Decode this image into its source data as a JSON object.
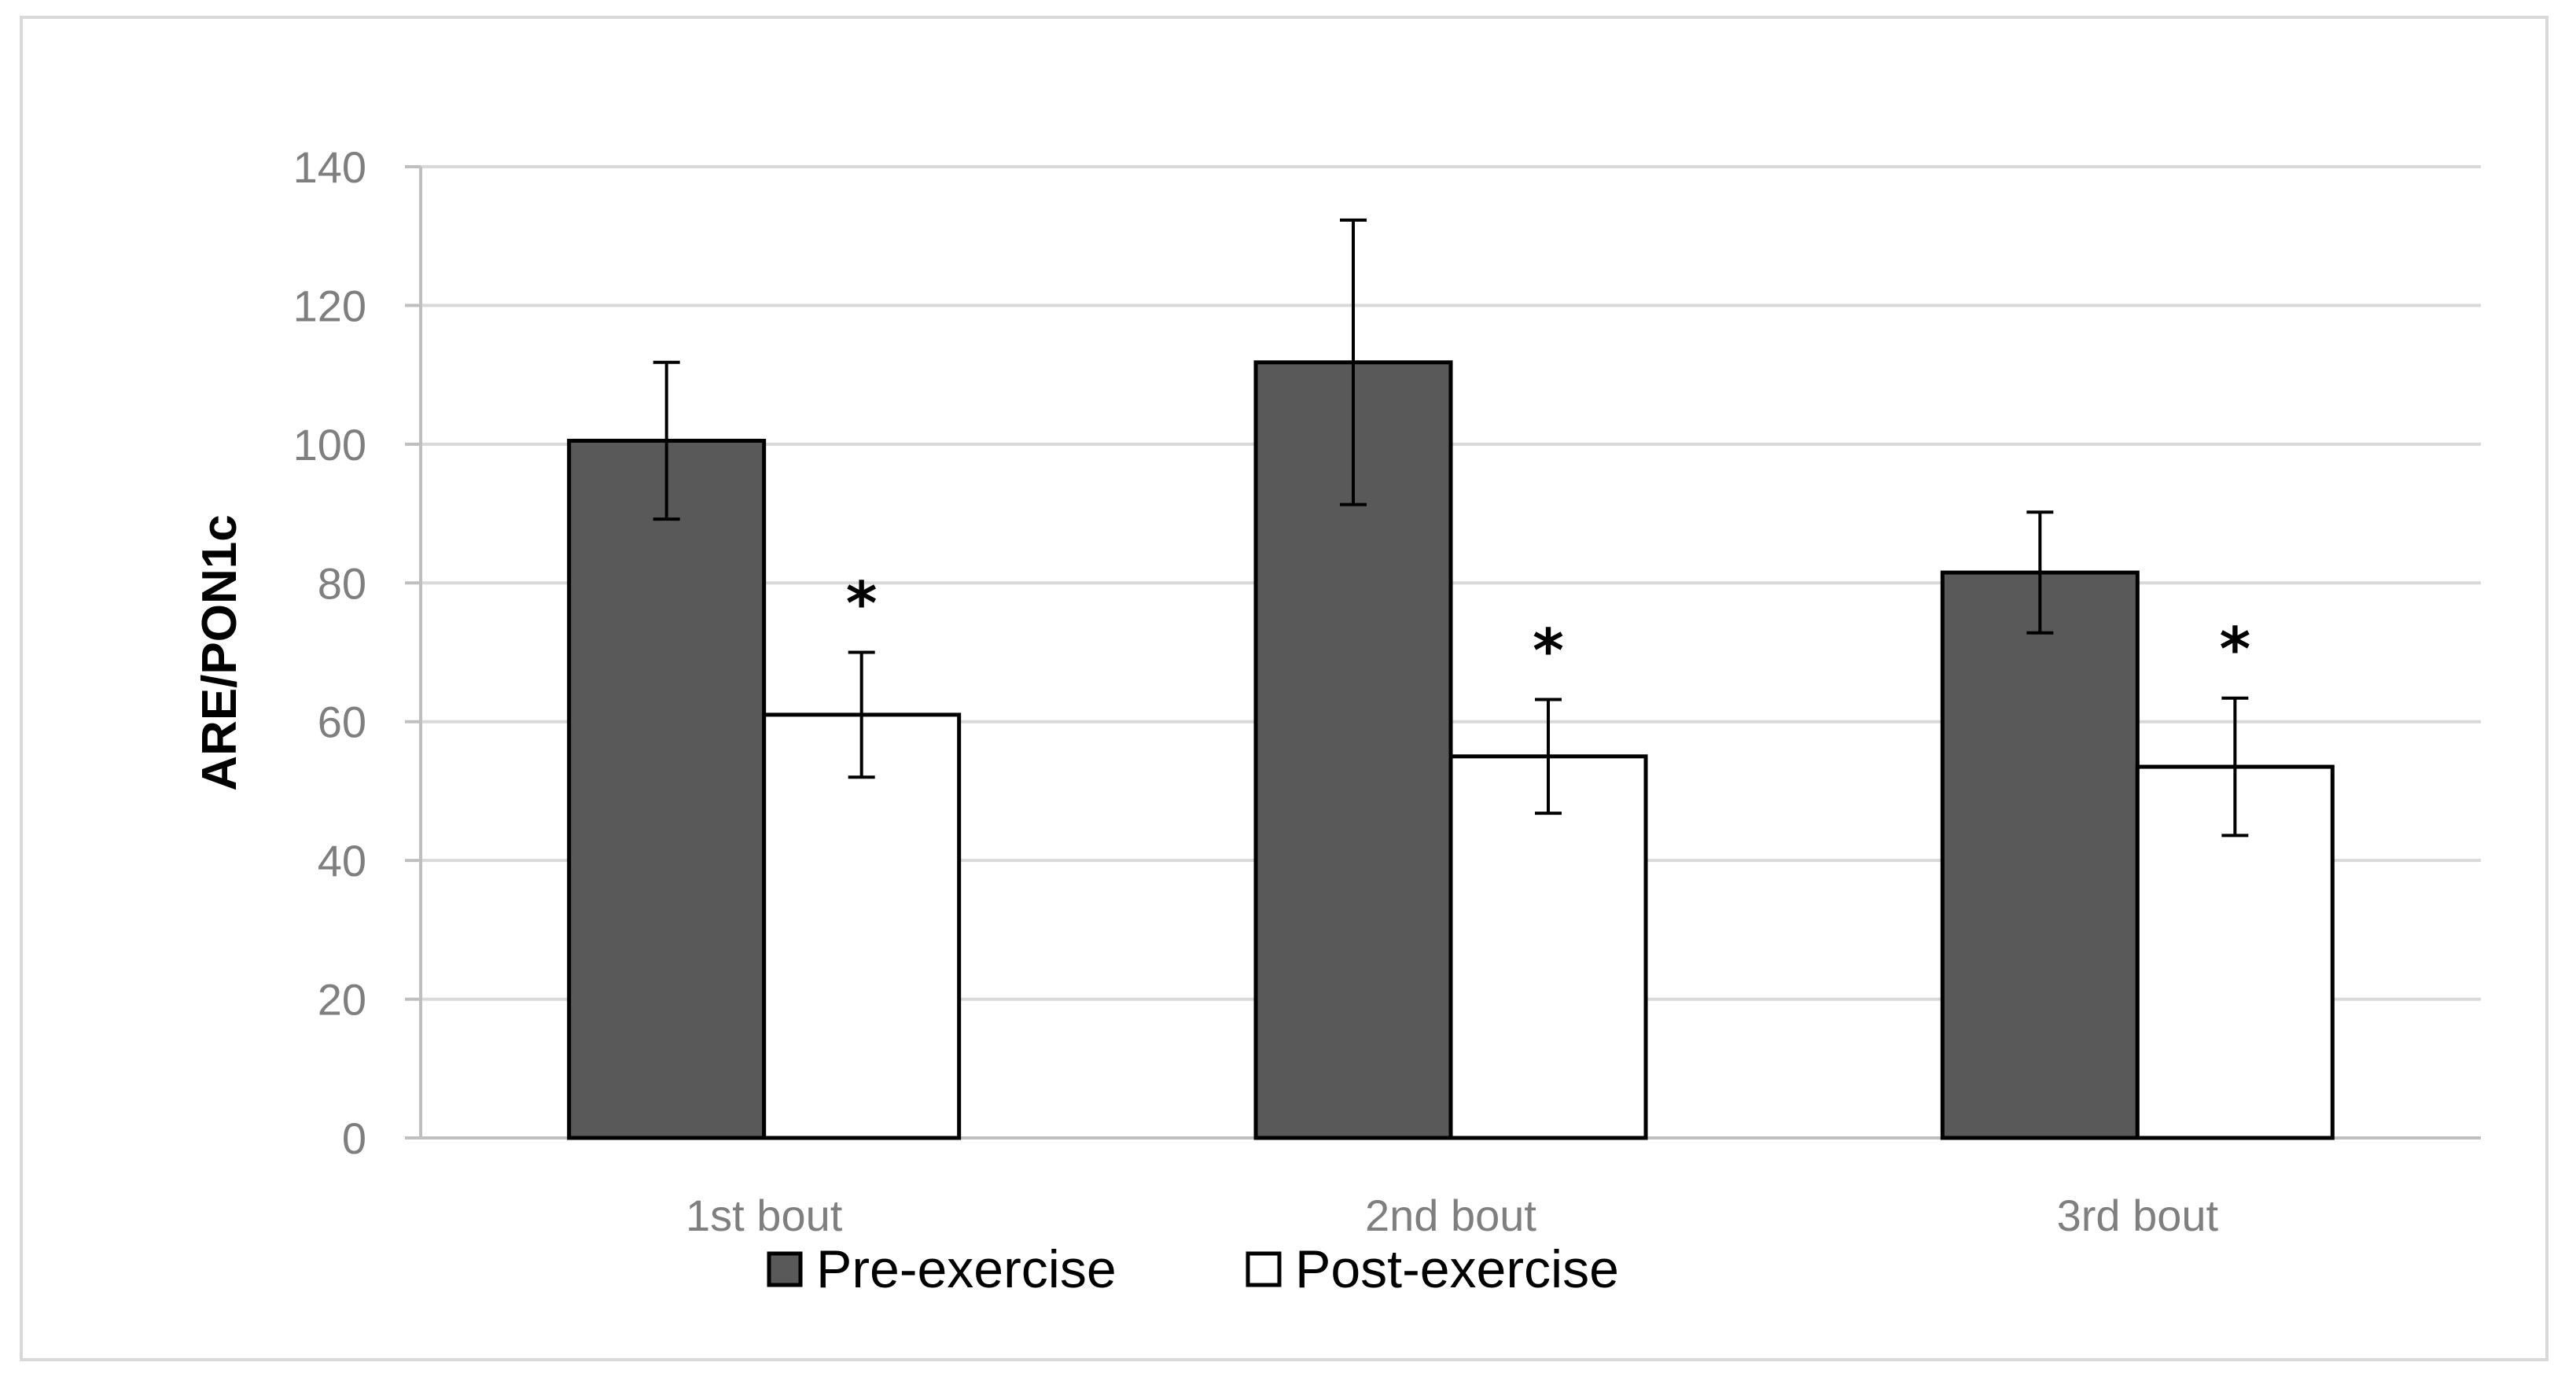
{
  "chart_data": {
    "type": "bar",
    "title": "",
    "xlabel": "",
    "ylabel": "ARE/PON1c",
    "ylim": [
      0,
      140
    ],
    "yticks": [
      0,
      20,
      40,
      60,
      80,
      100,
      120,
      140
    ],
    "grid": true,
    "legend_position": "bottom",
    "categories": [
      "1st bout",
      "2nd bout",
      "3rd bout"
    ],
    "series": [
      {
        "name": "Pre-exercise",
        "color": "#595959",
        "values": [
          100.5,
          111.8,
          81.5
        ],
        "error": [
          11.3,
          20.5,
          8.7
        ],
        "annotations": [
          "",
          "",
          ""
        ]
      },
      {
        "name": "Post-exercise",
        "color": "#ffffff",
        "values": [
          61,
          55,
          53.5
        ],
        "error": [
          9,
          8.2,
          9.9
        ],
        "annotations": [
          "*",
          "*",
          "*"
        ]
      }
    ]
  }
}
